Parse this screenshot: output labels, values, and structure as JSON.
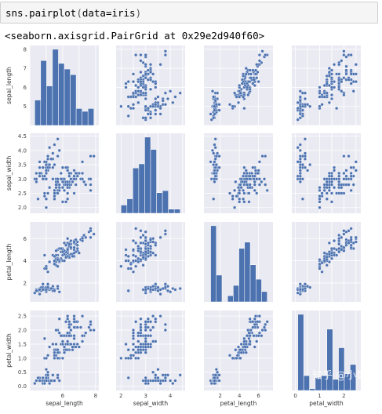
{
  "cell": {
    "code_func": "sns.pairplot",
    "code_arg": "data=iris",
    "output": "<seaborn.axisgrid.PairGrid at 0x29e2d940f60>"
  },
  "watermark": "知乎 @小数志",
  "colors": {
    "axes_bg": "#eaeaf2",
    "grid": "#ffffff",
    "marker": "#4c72b0",
    "bar": "#4c72b0"
  },
  "chart_data": {
    "type": "scatter",
    "variables": [
      "sepal_length",
      "sepal_width",
      "petal_length",
      "petal_width"
    ],
    "ranges": {
      "sepal_length": [
        4.0,
        8.2
      ],
      "sepal_width": [
        1.8,
        4.6
      ],
      "petal_length": [
        0.3,
        7.5
      ],
      "petal_width": [
        -0.15,
        2.7
      ]
    },
    "ticks": {
      "sepal_length": [
        4,
        5,
        6,
        7,
        8
      ],
      "sepal_width": [
        2.0,
        2.5,
        3.0,
        3.5,
        4.0,
        4.5
      ],
      "petal_length": [
        2,
        4,
        6
      ],
      "petal_width": [
        0.0,
        0.5,
        1.0,
        1.5,
        2.0,
        2.5
      ]
    },
    "x_tick_labels": {
      "sepal_length": [
        "6",
        "8"
      ],
      "sepal_width": [
        "2",
        "3",
        "4"
      ],
      "petal_length": [
        "2",
        "4",
        "6"
      ],
      "petal_width": [
        "0",
        "1",
        "2"
      ]
    },
    "y_tick_labels": {
      "sepal_length": [
        "5",
        "6",
        "7",
        "8"
      ],
      "sepal_width": [
        "2.0",
        "2.5",
        "3.0",
        "3.5",
        "4.0",
        "4.5"
      ],
      "petal_length": [
        "2",
        "4",
        "6"
      ],
      "petal_width": [
        "0.0",
        "0.5",
        "1.0",
        "1.5",
        "2.0",
        "2.5"
      ]
    },
    "diagonal": "histogram",
    "histograms": {
      "sepal_length": {
        "bins": [
          4.3,
          4.66,
          5.02,
          5.38,
          5.74,
          6.1,
          6.46,
          6.82,
          7.18,
          7.54,
          7.9
        ],
        "counts": [
          9,
          23,
          14,
          27,
          22,
          20,
          18,
          6,
          5,
          6
        ]
      },
      "sepal_width": {
        "bins": [
          2.0,
          2.24,
          2.48,
          2.72,
          2.96,
          3.2,
          3.44,
          3.68,
          3.92,
          4.16,
          4.4
        ],
        "counts": [
          4,
          7,
          22,
          24,
          37,
          31,
          10,
          11,
          2,
          2
        ]
      },
      "petal_length": {
        "bins": [
          1.0,
          1.59,
          2.18,
          2.77,
          3.36,
          3.95,
          4.54,
          5.13,
          5.72,
          6.31,
          6.9
        ],
        "counts": [
          37,
          13,
          0,
          3,
          8,
          26,
          29,
          18,
          11,
          5
        ]
      },
      "petal_width": {
        "bins": [
          0.1,
          0.34,
          0.58,
          0.82,
          1.06,
          1.3,
          1.54,
          1.78,
          2.02,
          2.26,
          2.5
        ],
        "counts": [
          41,
          8,
          1,
          7,
          8,
          33,
          6,
          23,
          9,
          14
        ]
      }
    },
    "records": [
      [
        5.1,
        3.5,
        1.4,
        0.2
      ],
      [
        4.9,
        3.0,
        1.4,
        0.2
      ],
      [
        4.7,
        3.2,
        1.3,
        0.2
      ],
      [
        4.6,
        3.1,
        1.5,
        0.2
      ],
      [
        5.0,
        3.6,
        1.4,
        0.2
      ],
      [
        5.4,
        3.9,
        1.7,
        0.4
      ],
      [
        4.6,
        3.4,
        1.4,
        0.3
      ],
      [
        5.0,
        3.4,
        1.5,
        0.2
      ],
      [
        4.4,
        2.9,
        1.4,
        0.2
      ],
      [
        4.9,
        3.1,
        1.5,
        0.1
      ],
      [
        5.4,
        3.7,
        1.5,
        0.2
      ],
      [
        4.8,
        3.4,
        1.6,
        0.2
      ],
      [
        4.8,
        3.0,
        1.4,
        0.1
      ],
      [
        4.3,
        3.0,
        1.1,
        0.1
      ],
      [
        5.8,
        4.0,
        1.2,
        0.2
      ],
      [
        5.7,
        4.4,
        1.5,
        0.4
      ],
      [
        5.4,
        3.9,
        1.3,
        0.4
      ],
      [
        5.1,
        3.5,
        1.4,
        0.3
      ],
      [
        5.7,
        3.8,
        1.7,
        0.3
      ],
      [
        5.1,
        3.8,
        1.5,
        0.3
      ],
      [
        5.4,
        3.4,
        1.7,
        0.2
      ],
      [
        5.1,
        3.7,
        1.5,
        0.4
      ],
      [
        4.6,
        3.6,
        1.0,
        0.2
      ],
      [
        5.1,
        3.3,
        1.7,
        0.5
      ],
      [
        4.8,
        3.4,
        1.9,
        0.2
      ],
      [
        5.0,
        3.0,
        1.6,
        0.2
      ],
      [
        5.0,
        3.4,
        1.6,
        0.4
      ],
      [
        5.2,
        3.5,
        1.5,
        0.2
      ],
      [
        5.2,
        3.4,
        1.4,
        0.2
      ],
      [
        4.7,
        3.2,
        1.6,
        0.2
      ],
      [
        4.8,
        3.1,
        1.6,
        0.2
      ],
      [
        5.4,
        3.4,
        1.5,
        0.4
      ],
      [
        5.2,
        4.1,
        1.5,
        0.1
      ],
      [
        5.5,
        4.2,
        1.4,
        0.2
      ],
      [
        4.9,
        3.1,
        1.5,
        0.2
      ],
      [
        5.0,
        3.2,
        1.2,
        0.2
      ],
      [
        5.5,
        3.5,
        1.3,
        0.2
      ],
      [
        4.9,
        3.6,
        1.4,
        0.1
      ],
      [
        4.4,
        3.0,
        1.3,
        0.2
      ],
      [
        5.1,
        3.4,
        1.5,
        0.2
      ],
      [
        5.0,
        3.5,
        1.3,
        0.3
      ],
      [
        4.5,
        2.3,
        1.3,
        0.3
      ],
      [
        4.4,
        3.2,
        1.3,
        0.2
      ],
      [
        5.0,
        3.5,
        1.6,
        0.6
      ],
      [
        5.1,
        3.8,
        1.9,
        0.4
      ],
      [
        4.8,
        3.0,
        1.4,
        0.3
      ],
      [
        5.1,
        3.8,
        1.6,
        0.2
      ],
      [
        4.6,
        3.2,
        1.4,
        0.2
      ],
      [
        5.3,
        3.7,
        1.5,
        0.2
      ],
      [
        5.0,
        3.3,
        1.4,
        0.2
      ],
      [
        7.0,
        3.2,
        4.7,
        1.4
      ],
      [
        6.4,
        3.2,
        4.5,
        1.5
      ],
      [
        6.9,
        3.1,
        4.9,
        1.5
      ],
      [
        5.5,
        2.3,
        4.0,
        1.3
      ],
      [
        6.5,
        2.8,
        4.6,
        1.5
      ],
      [
        5.7,
        2.8,
        4.5,
        1.3
      ],
      [
        6.3,
        3.3,
        4.7,
        1.6
      ],
      [
        4.9,
        2.4,
        3.3,
        1.0
      ],
      [
        6.6,
        2.9,
        4.6,
        1.3
      ],
      [
        5.2,
        2.7,
        3.9,
        1.4
      ],
      [
        5.0,
        2.0,
        3.5,
        1.0
      ],
      [
        5.9,
        3.0,
        4.2,
        1.5
      ],
      [
        6.0,
        2.2,
        4.0,
        1.0
      ],
      [
        6.1,
        2.9,
        4.7,
        1.4
      ],
      [
        5.6,
        2.9,
        3.6,
        1.3
      ],
      [
        6.7,
        3.1,
        4.4,
        1.4
      ],
      [
        5.6,
        3.0,
        4.5,
        1.5
      ],
      [
        5.8,
        2.7,
        4.1,
        1.0
      ],
      [
        6.2,
        2.2,
        4.5,
        1.5
      ],
      [
        5.6,
        2.5,
        3.9,
        1.1
      ],
      [
        5.9,
        3.2,
        4.8,
        1.8
      ],
      [
        6.1,
        2.8,
        4.0,
        1.3
      ],
      [
        6.3,
        2.5,
        4.9,
        1.5
      ],
      [
        6.1,
        2.8,
        4.7,
        1.2
      ],
      [
        6.4,
        2.9,
        4.3,
        1.3
      ],
      [
        6.6,
        3.0,
        4.4,
        1.4
      ],
      [
        6.8,
        2.8,
        4.8,
        1.4
      ],
      [
        6.7,
        3.0,
        5.0,
        1.7
      ],
      [
        6.0,
        2.9,
        4.5,
        1.5
      ],
      [
        5.7,
        2.6,
        3.5,
        1.0
      ],
      [
        5.5,
        2.4,
        3.8,
        1.1
      ],
      [
        5.5,
        2.4,
        3.7,
        1.0
      ],
      [
        5.8,
        2.7,
        3.9,
        1.2
      ],
      [
        6.0,
        2.7,
        5.1,
        1.6
      ],
      [
        5.4,
        3.0,
        4.5,
        1.5
      ],
      [
        6.0,
        3.4,
        4.5,
        1.6
      ],
      [
        6.7,
        3.1,
        4.7,
        1.5
      ],
      [
        6.3,
        2.3,
        4.4,
        1.3
      ],
      [
        5.6,
        3.0,
        4.1,
        1.3
      ],
      [
        5.5,
        2.5,
        4.0,
        1.3
      ],
      [
        5.5,
        2.6,
        4.4,
        1.2
      ],
      [
        6.1,
        3.0,
        4.6,
        1.4
      ],
      [
        5.8,
        2.6,
        4.0,
        1.2
      ],
      [
        5.0,
        2.3,
        3.3,
        1.0
      ],
      [
        5.6,
        2.7,
        4.2,
        1.3
      ],
      [
        5.7,
        3.0,
        4.2,
        1.2
      ],
      [
        5.7,
        2.9,
        4.2,
        1.3
      ],
      [
        6.2,
        2.9,
        4.3,
        1.3
      ],
      [
        5.1,
        2.5,
        3.0,
        1.1
      ],
      [
        5.7,
        2.8,
        4.1,
        1.3
      ],
      [
        6.3,
        3.3,
        6.0,
        2.5
      ],
      [
        5.8,
        2.7,
        5.1,
        1.9
      ],
      [
        7.1,
        3.0,
        5.9,
        2.1
      ],
      [
        6.3,
        2.9,
        5.6,
        1.8
      ],
      [
        6.5,
        3.0,
        5.8,
        2.2
      ],
      [
        7.6,
        3.0,
        6.6,
        2.1
      ],
      [
        4.9,
        2.5,
        4.5,
        1.7
      ],
      [
        7.3,
        2.9,
        6.3,
        1.8
      ],
      [
        6.7,
        2.5,
        5.8,
        1.8
      ],
      [
        7.2,
        3.6,
        6.1,
        2.5
      ],
      [
        6.5,
        3.2,
        5.1,
        2.0
      ],
      [
        6.4,
        2.7,
        5.3,
        1.9
      ],
      [
        6.8,
        3.0,
        5.5,
        2.1
      ],
      [
        5.7,
        2.5,
        5.0,
        2.0
      ],
      [
        5.8,
        2.8,
        5.1,
        2.4
      ],
      [
        6.4,
        3.2,
        5.3,
        2.3
      ],
      [
        6.5,
        3.0,
        5.5,
        1.8
      ],
      [
        7.7,
        3.8,
        6.7,
        2.2
      ],
      [
        7.7,
        2.6,
        6.9,
        2.3
      ],
      [
        6.0,
        2.2,
        5.0,
        1.5
      ],
      [
        6.9,
        3.2,
        5.7,
        2.3
      ],
      [
        5.6,
        2.8,
        4.9,
        2.0
      ],
      [
        7.7,
        2.8,
        6.7,
        2.0
      ],
      [
        6.3,
        2.7,
        4.9,
        1.8
      ],
      [
        6.7,
        3.3,
        5.7,
        2.1
      ],
      [
        7.2,
        3.2,
        6.0,
        1.8
      ],
      [
        6.2,
        2.8,
        4.8,
        1.8
      ],
      [
        6.1,
        3.0,
        4.9,
        1.8
      ],
      [
        6.4,
        2.8,
        5.6,
        2.1
      ],
      [
        7.2,
        3.0,
        5.8,
        1.6
      ],
      [
        7.4,
        2.8,
        6.1,
        1.9
      ],
      [
        7.9,
        3.8,
        6.4,
        2.0
      ],
      [
        6.4,
        2.8,
        5.6,
        2.2
      ],
      [
        6.3,
        2.8,
        5.1,
        1.5
      ],
      [
        6.1,
        2.6,
        5.6,
        1.4
      ],
      [
        7.7,
        3.0,
        6.1,
        2.3
      ],
      [
        6.3,
        3.4,
        5.6,
        2.4
      ],
      [
        6.4,
        3.1,
        5.5,
        1.8
      ],
      [
        6.0,
        3.0,
        4.8,
        1.8
      ],
      [
        6.9,
        3.1,
        5.4,
        2.1
      ],
      [
        6.7,
        3.1,
        5.6,
        2.4
      ],
      [
        6.9,
        3.1,
        5.1,
        2.3
      ],
      [
        5.8,
        2.7,
        5.1,
        1.9
      ],
      [
        6.8,
        3.2,
        5.9,
        2.3
      ],
      [
        6.7,
        3.3,
        5.7,
        2.5
      ],
      [
        6.7,
        3.0,
        5.2,
        2.3
      ],
      [
        6.3,
        2.5,
        5.0,
        1.9
      ],
      [
        6.5,
        3.0,
        5.2,
        2.0
      ],
      [
        6.2,
        3.4,
        5.4,
        2.3
      ],
      [
        5.9,
        3.0,
        5.1,
        1.8
      ]
    ]
  }
}
